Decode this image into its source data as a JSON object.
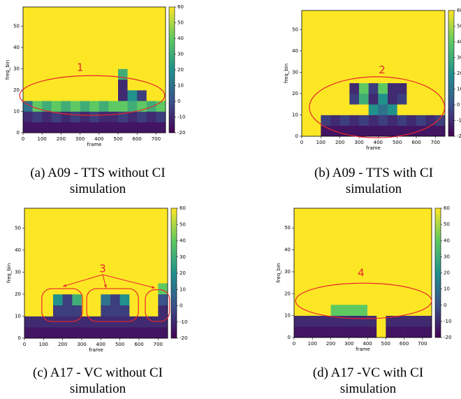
{
  "chart_data": [
    {
      "type": "heatmap",
      "caption": "(a) A09 - TTS without CI simulation",
      "xlabel": "frame",
      "ylabel": "freq_bin",
      "xlim": [
        0,
        750
      ],
      "ylim": [
        0,
        59
      ],
      "xticks": [
        0,
        100,
        200,
        300,
        400,
        500,
        600,
        700
      ],
      "yticks": [
        0,
        10,
        20,
        30,
        40,
        50
      ],
      "clim": [
        -20,
        60
      ],
      "cticks": [
        -20,
        -10,
        0,
        10,
        20,
        30,
        40,
        50,
        60
      ],
      "annotation": "1",
      "xbins": [
        0,
        50,
        100,
        150,
        200,
        250,
        300,
        350,
        400,
        450,
        500,
        550,
        600,
        650,
        700,
        750
      ],
      "ybins": [
        0,
        5,
        10,
        15,
        20,
        25,
        30,
        35,
        40,
        45,
        50,
        55,
        59
      ],
      "z": [
        [
          -15,
          -15,
          -15,
          -15,
          -15,
          -15,
          -15,
          -15,
          -15,
          -15,
          -15,
          -15,
          -15,
          -15,
          -15
        ],
        [
          -10,
          -5,
          -10,
          -5,
          -10,
          -5,
          -10,
          -5,
          -10,
          -10,
          -5,
          -10,
          -5,
          -10,
          -5
        ],
        [
          10,
          40,
          30,
          40,
          30,
          40,
          30,
          40,
          30,
          40,
          40,
          30,
          40,
          30,
          40
        ],
        [
          60,
          60,
          60,
          60,
          60,
          60,
          60,
          60,
          60,
          60,
          -10,
          20,
          -5,
          60,
          60
        ],
        [
          60,
          60,
          60,
          60,
          60,
          60,
          60,
          60,
          60,
          60,
          -10,
          60,
          60,
          60,
          60
        ],
        [
          60,
          60,
          60,
          60,
          60,
          60,
          60,
          60,
          60,
          60,
          30,
          60,
          60,
          60,
          60
        ],
        [
          60,
          60,
          60,
          60,
          60,
          60,
          60,
          60,
          60,
          60,
          60,
          60,
          60,
          60,
          60
        ],
        [
          60,
          60,
          60,
          60,
          60,
          60,
          60,
          60,
          60,
          60,
          60,
          60,
          60,
          60,
          60
        ],
        [
          60,
          60,
          60,
          60,
          60,
          60,
          60,
          60,
          60,
          60,
          60,
          60,
          60,
          60,
          60
        ],
        [
          60,
          60,
          60,
          60,
          60,
          60,
          60,
          60,
          60,
          60,
          60,
          60,
          60,
          60,
          60
        ],
        [
          60,
          60,
          60,
          60,
          60,
          60,
          60,
          60,
          60,
          60,
          60,
          60,
          60,
          60,
          60
        ],
        [
          60,
          60,
          60,
          60,
          60,
          60,
          60,
          60,
          60,
          60,
          60,
          60,
          60,
          60,
          60
        ]
      ]
    },
    {
      "type": "heatmap",
      "caption": "(b) A09 - TTS with CI simulation",
      "xlabel": "frame",
      "ylabel": "freq_bin",
      "xlim": [
        0,
        750
      ],
      "ylim": [
        0,
        59
      ],
      "xticks": [
        0,
        100,
        200,
        300,
        400,
        500,
        600,
        700
      ],
      "yticks": [
        0,
        10,
        20,
        30,
        40,
        50
      ],
      "clim": [
        -20,
        60
      ],
      "cticks": [
        -20,
        -10,
        0,
        10,
        20,
        30,
        40,
        50,
        60
      ],
      "annotation": "2",
      "xbins": [
        0,
        50,
        100,
        150,
        200,
        250,
        300,
        350,
        400,
        450,
        500,
        550,
        600,
        650,
        700,
        750
      ],
      "ybins": [
        0,
        5,
        10,
        15,
        20,
        25,
        30,
        35,
        40,
        45,
        50,
        55,
        59
      ],
      "z": [
        [
          60,
          60,
          -15,
          -15,
          -15,
          -15,
          -15,
          -15,
          -15,
          -15,
          -15,
          -15,
          -15,
          -15,
          -15
        ],
        [
          60,
          60,
          -5,
          -10,
          -5,
          -10,
          -5,
          -10,
          -5,
          -10,
          -5,
          -10,
          -5,
          -10,
          -5
        ],
        [
          60,
          60,
          60,
          60,
          60,
          60,
          60,
          20,
          10,
          20,
          60,
          60,
          60,
          60,
          60
        ],
        [
          60,
          60,
          60,
          60,
          60,
          -5,
          30,
          -10,
          20,
          -10,
          -5,
          60,
          60,
          60,
          60
        ],
        [
          60,
          60,
          60,
          60,
          60,
          -10,
          40,
          -5,
          40,
          -10,
          -10,
          60,
          60,
          60,
          60
        ],
        [
          60,
          60,
          60,
          60,
          60,
          60,
          60,
          60,
          60,
          60,
          60,
          60,
          60,
          60,
          60
        ],
        [
          60,
          60,
          60,
          60,
          60,
          60,
          60,
          60,
          60,
          60,
          60,
          60,
          60,
          60,
          60
        ],
        [
          60,
          60,
          60,
          60,
          60,
          60,
          60,
          60,
          60,
          60,
          60,
          60,
          60,
          60,
          60
        ],
        [
          60,
          60,
          60,
          60,
          60,
          60,
          60,
          60,
          60,
          60,
          60,
          60,
          60,
          60,
          60
        ],
        [
          60,
          60,
          60,
          60,
          60,
          60,
          60,
          60,
          60,
          60,
          60,
          60,
          60,
          60,
          60
        ],
        [
          60,
          60,
          60,
          60,
          60,
          60,
          60,
          60,
          60,
          60,
          60,
          60,
          60,
          60,
          60
        ],
        [
          60,
          60,
          60,
          60,
          60,
          60,
          60,
          60,
          60,
          60,
          60,
          60,
          60,
          60,
          60
        ]
      ]
    },
    {
      "type": "heatmap",
      "caption": "(c) A17 - VC without CI simulation",
      "xlabel": "frame",
      "ylabel": "freq_bin",
      "xlim": [
        0,
        750
      ],
      "ylim": [
        0,
        59
      ],
      "xticks": [
        0,
        100,
        200,
        300,
        400,
        500,
        600,
        700
      ],
      "yticks": [
        0,
        10,
        20,
        30,
        40,
        50
      ],
      "clim": [
        -20,
        60
      ],
      "cticks": [
        -20,
        -10,
        0,
        10,
        20,
        30,
        40,
        50,
        60
      ],
      "annotation": "3",
      "xbins": [
        0,
        50,
        100,
        150,
        200,
        250,
        300,
        350,
        400,
        450,
        500,
        550,
        600,
        650,
        700,
        750
      ],
      "ybins": [
        0,
        5,
        10,
        15,
        20,
        25,
        30,
        35,
        40,
        45,
        50,
        55,
        59
      ],
      "z": [
        [
          -15,
          -15,
          -15,
          -15,
          -15,
          -15,
          -15,
          -15,
          -15,
          -15,
          -15,
          -15,
          -15,
          -15,
          -15
        ],
        [
          -10,
          -10,
          -10,
          -10,
          -10,
          -10,
          -10,
          -10,
          -10,
          -10,
          -10,
          -10,
          -10,
          -10,
          -10
        ],
        [
          60,
          60,
          60,
          -5,
          -5,
          -5,
          60,
          60,
          -5,
          -5,
          -5,
          60,
          60,
          60,
          -10
        ],
        [
          60,
          60,
          60,
          20,
          -5,
          30,
          60,
          60,
          10,
          -5,
          20,
          60,
          60,
          60,
          0
        ],
        [
          60,
          60,
          60,
          60,
          60,
          60,
          60,
          60,
          60,
          60,
          60,
          60,
          60,
          60,
          40
        ],
        [
          60,
          60,
          60,
          60,
          60,
          60,
          60,
          60,
          60,
          60,
          60,
          60,
          60,
          60,
          60
        ],
        [
          60,
          60,
          60,
          60,
          60,
          60,
          60,
          60,
          60,
          60,
          60,
          60,
          60,
          60,
          60
        ],
        [
          60,
          60,
          60,
          60,
          60,
          60,
          60,
          60,
          60,
          60,
          60,
          60,
          60,
          60,
          60
        ],
        [
          60,
          60,
          60,
          60,
          60,
          60,
          60,
          60,
          60,
          60,
          60,
          60,
          60,
          60,
          60
        ],
        [
          60,
          60,
          60,
          60,
          60,
          60,
          60,
          60,
          60,
          60,
          60,
          60,
          60,
          60,
          60
        ],
        [
          60,
          60,
          60,
          60,
          60,
          60,
          60,
          60,
          60,
          60,
          60,
          60,
          60,
          60,
          60
        ],
        [
          60,
          60,
          60,
          60,
          60,
          60,
          60,
          60,
          60,
          60,
          60,
          60,
          60,
          60,
          60
        ]
      ]
    },
    {
      "type": "heatmap",
      "caption": "(d) A17 -VC with CI simulation",
      "xlabel": "frame",
      "ylabel": "freq_bin",
      "xlim": [
        0,
        750
      ],
      "ylim": [
        0,
        59
      ],
      "xticks": [
        0,
        100,
        200,
        300,
        400,
        500,
        600,
        700
      ],
      "yticks": [
        0,
        10,
        20,
        30,
        40,
        50
      ],
      "clim": [
        -20,
        60
      ],
      "cticks": [
        -20,
        -10,
        0,
        10,
        20,
        30,
        40,
        50,
        60
      ],
      "annotation": "4",
      "xbins": [
        0,
        50,
        100,
        150,
        200,
        250,
        300,
        350,
        400,
        450,
        500,
        550,
        600,
        650,
        700,
        750
      ],
      "ybins": [
        0,
        5,
        10,
        15,
        20,
        25,
        30,
        35,
        40,
        45,
        50,
        55,
        59
      ],
      "z": [
        [
          -15,
          -15,
          -15,
          -15,
          -15,
          -15,
          -15,
          -15,
          -15,
          60,
          -15,
          -15,
          -15,
          -15,
          -15
        ],
        [
          -10,
          -10,
          -10,
          -10,
          -10,
          -10,
          -10,
          -10,
          -10,
          60,
          -10,
          -10,
          -10,
          -10,
          -10
        ],
        [
          60,
          60,
          60,
          60,
          40,
          40,
          40,
          40,
          60,
          60,
          60,
          60,
          60,
          60,
          60
        ],
        [
          60,
          60,
          60,
          60,
          60,
          60,
          60,
          60,
          60,
          60,
          60,
          60,
          60,
          60,
          60
        ],
        [
          60,
          60,
          60,
          60,
          60,
          60,
          60,
          60,
          60,
          60,
          60,
          60,
          60,
          60,
          60
        ],
        [
          60,
          60,
          60,
          60,
          60,
          60,
          60,
          60,
          60,
          60,
          60,
          60,
          60,
          60,
          60
        ],
        [
          60,
          60,
          60,
          60,
          60,
          60,
          60,
          60,
          60,
          60,
          60,
          60,
          60,
          60,
          60
        ],
        [
          60,
          60,
          60,
          60,
          60,
          60,
          60,
          60,
          60,
          60,
          60,
          60,
          60,
          60,
          60
        ],
        [
          60,
          60,
          60,
          60,
          60,
          60,
          60,
          60,
          60,
          60,
          60,
          60,
          60,
          60,
          60
        ],
        [
          60,
          60,
          60,
          60,
          60,
          60,
          60,
          60,
          60,
          60,
          60,
          60,
          60,
          60,
          60
        ],
        [
          60,
          60,
          60,
          60,
          60,
          60,
          60,
          60,
          60,
          60,
          60,
          60,
          60,
          60,
          60
        ],
        [
          60,
          60,
          60,
          60,
          60,
          60,
          60,
          60,
          60,
          60,
          60,
          60,
          60,
          60,
          60
        ]
      ]
    }
  ]
}
